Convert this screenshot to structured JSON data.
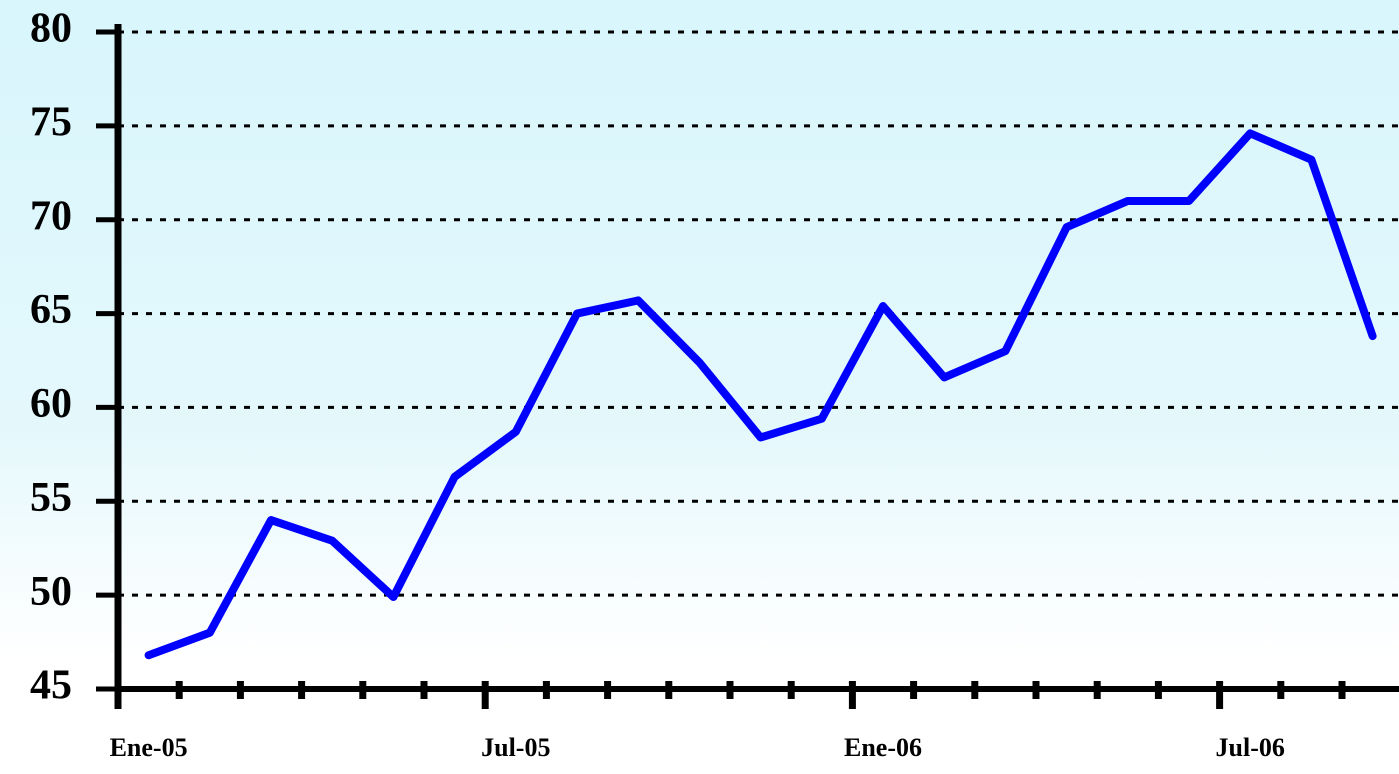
{
  "chart_data": {
    "type": "line",
    "categories": [
      "Ene-05",
      null,
      null,
      null,
      null,
      null,
      "Jul-05",
      null,
      null,
      null,
      null,
      null,
      "Ene-06",
      null,
      null,
      null,
      null,
      null,
      "Jul-06",
      null,
      null
    ],
    "series": [
      {
        "name": null,
        "color": "#0000ff",
        "values": [
          46.8,
          48.0,
          54.0,
          52.9,
          49.9,
          56.3,
          58.7,
          65.0,
          65.7,
          62.4,
          58.4,
          59.4,
          65.4,
          61.6,
          63.0,
          69.6,
          71.0,
          71.0,
          74.6,
          73.2,
          63.8
        ]
      }
    ],
    "ylim": [
      45,
      80
    ],
    "yticks": [
      45,
      50,
      55,
      60,
      65,
      70,
      75,
      80
    ],
    "grid": true
  }
}
